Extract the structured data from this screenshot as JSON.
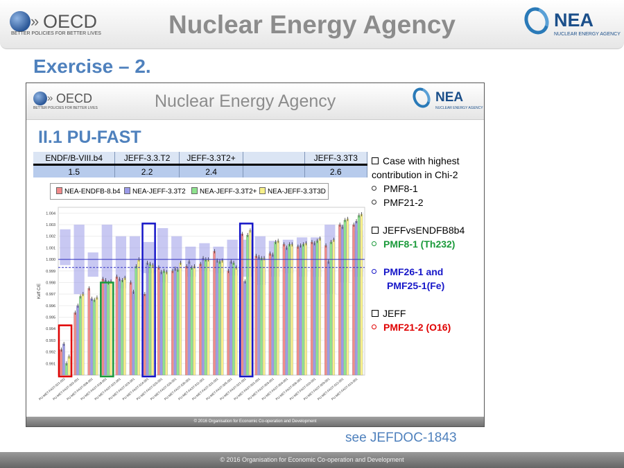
{
  "header": {
    "oecd_logo_text": "OECD",
    "oecd_tagline": "BETTER POLICIES FOR BETTER LIVES",
    "title": "Nuclear Energy Agency",
    "nea_logo_text": "NEA",
    "nea_tagline": "NUCLEAR ENERGY AGENCY"
  },
  "exercise_title": "Exercise – 2.",
  "slide": {
    "header_title": "Nuclear Energy Agency",
    "oecd_logo_text": "OECD",
    "oecd_tagline": "BETTER POLICIES FOR BETTER LIVES",
    "nea_logo_text": "NEA",
    "nea_tagline": "NUCLEAR ENERGY AGENCY",
    "section_title": "II.1 PU-FAST",
    "table": {
      "headers": [
        "ENDF/B-VIII.b4",
        "JEFF-3.3.T2",
        "JEFF-3.3T2+",
        "",
        "JEFF-3.3T3"
      ],
      "values": [
        "1.5",
        "2.2",
        "2.4",
        "",
        "2.6"
      ]
    },
    "footer": "© 2016 Organisation for Economic Co-operation and Development",
    "notes": {
      "case_title_1": "Case with highest",
      "case_title_2": "contribution in Chi-2",
      "case_item_1": "PMF8-1",
      "case_item_2": "PMF21-2",
      "jeff_vs_title": "JEFFvsENDFB8b4",
      "jeff_vs_item": "PMF8-1 (Th232)",
      "pmf26_line1": "PMF26-1 and",
      "pmf26_line2": "PMF25-1(Fe)",
      "jeff_title": "JEFF",
      "jeff_item": "PMF21-2 (O16)"
    },
    "colors": {
      "green_text": "#1a9a3a",
      "blue_text": "#1616c8",
      "red_text": "#e00000"
    }
  },
  "see_ref": "see JEFDOC-1843",
  "footer": "© 2016 Organisation for Economic Co-operation and Development",
  "chart_data": {
    "type": "bar",
    "ylabel": "Keff C/E",
    "ylim": [
      0.99,
      1.0045
    ],
    "yticks": [
      "1.004",
      "1.003",
      "1.002",
      "1.001",
      "1.000",
      "0.999",
      "0.998",
      "0.997",
      "0.996",
      "0.995",
      "0.994",
      "0.993",
      "0.992",
      "0.991"
    ],
    "categories": [
      "PU-MET-FAST-021-002",
      "PU-MET-FAST-002-001",
      "PU-MET-FAST-008-001",
      "PU-MET-FAST-018-001",
      "PU-MET-FAST-022-001",
      "PU-MET-FAST-023-001",
      "PU-MET-FAST-024-001",
      "PU-MET-FAST-025-001",
      "PU-MET-FAST-026-001",
      "PU-MET-FAST-030-001",
      "PU-MET-FAST-011-001",
      "PU-MET-FAST-031-001",
      "PU-MET-FAST-005-001",
      "PU-MET-FAST-021-001",
      "PU-MET-FAST-001-001",
      "PU-MET-FAST-003-001",
      "PU-MET-FAST-004-001",
      "PU-MET-FAST-006-001",
      "PU-MET-FAST-010-001",
      "PU-MET-FAST-009-001",
      "PU-MET-FAST-012-001",
      "PU-MET-FAST-013-001"
    ],
    "uncertainty_bands": [
      [
        0.9995,
        1.0026
      ],
      [
        0.997,
        1.003
      ],
      [
        0.9985,
        1.0006
      ],
      [
        0.998,
        1.003
      ],
      [
        0.9975,
        1.002
      ],
      [
        0.9965,
        1.002
      ],
      [
        0.9988,
        1.0015
      ],
      [
        0.998,
        1.0027
      ],
      [
        0.999,
        1.002
      ],
      [
        0.9985,
        1.0011
      ],
      [
        0.999,
        1.0014
      ],
      [
        0.9988,
        1.0011
      ],
      [
        0.9986,
        1.0017
      ],
      [
        0.9985,
        1.0017
      ],
      [
        0.9978,
        1.002
      ],
      [
        0.9985,
        1.0016
      ],
      [
        0.9988,
        1.0017
      ],
      [
        0.9985,
        1.0019
      ],
      [
        0.9985,
        1.0019
      ],
      [
        0.997,
        1.003
      ],
      [
        0.998,
        1.003
      ],
      [
        0.9985,
        1.0025
      ]
    ],
    "series": [
      {
        "name": "NEA-ENDFB-8.b4",
        "color": "#f28b8b",
        "values": [
          0.9922,
          0.9954,
          0.9975,
          0.9983,
          0.9985,
          0.998,
          0.997,
          0.9993,
          0.999,
          0.9994,
          0.9996,
          1.0007,
          0.999,
          1.0022,
          1.0003,
          1.0005,
          1.0013,
          1.0011,
          1.0015,
          1.0012,
          1.003,
          1.003
        ]
      },
      {
        "name": "NEA-JEFF-3.3T2",
        "color": "#9b9be8",
        "values": [
          0.9927,
          0.996,
          0.9966,
          0.9982,
          0.9983,
          0.9972,
          0.9997,
          0.9989,
          0.9992,
          0.9998,
          1.0001,
          0.9999,
          0.9998,
          0.9981,
          1.0002,
          1.0004,
          1.001,
          1.0012,
          1.0014,
          0.9998,
          1.0028,
          1.0033
        ]
      },
      {
        "name": "NEA-JEFF-3.3T2+",
        "color": "#8ee38e",
        "values": [
          0.991,
          0.9968,
          0.9965,
          0.998,
          0.9982,
          0.9994,
          0.9996,
          0.999,
          0.9991,
          0.9993,
          1.0,
          0.9998,
          0.9997,
          1.0021,
          1.0001,
          1.0015,
          1.0013,
          1.0013,
          1.0016,
          1.0015,
          1.0034,
          1.0038
        ]
      },
      {
        "name": "NEA-JEFF-3.3T3D",
        "color": "#f7f08a",
        "values": [
          0.9916,
          0.997,
          0.9967,
          0.9981,
          0.9984,
          1.0,
          0.9995,
          0.9989,
          0.9997,
          0.9994,
          1.0,
          0.9999,
          0.9993,
          1.0025,
          1.0001,
          1.0016,
          1.0013,
          1.0014,
          1.0018,
          1.0017,
          1.0035,
          1.0039
        ]
      }
    ],
    "reference_lines": [
      1.0,
      0.9993
    ]
  }
}
